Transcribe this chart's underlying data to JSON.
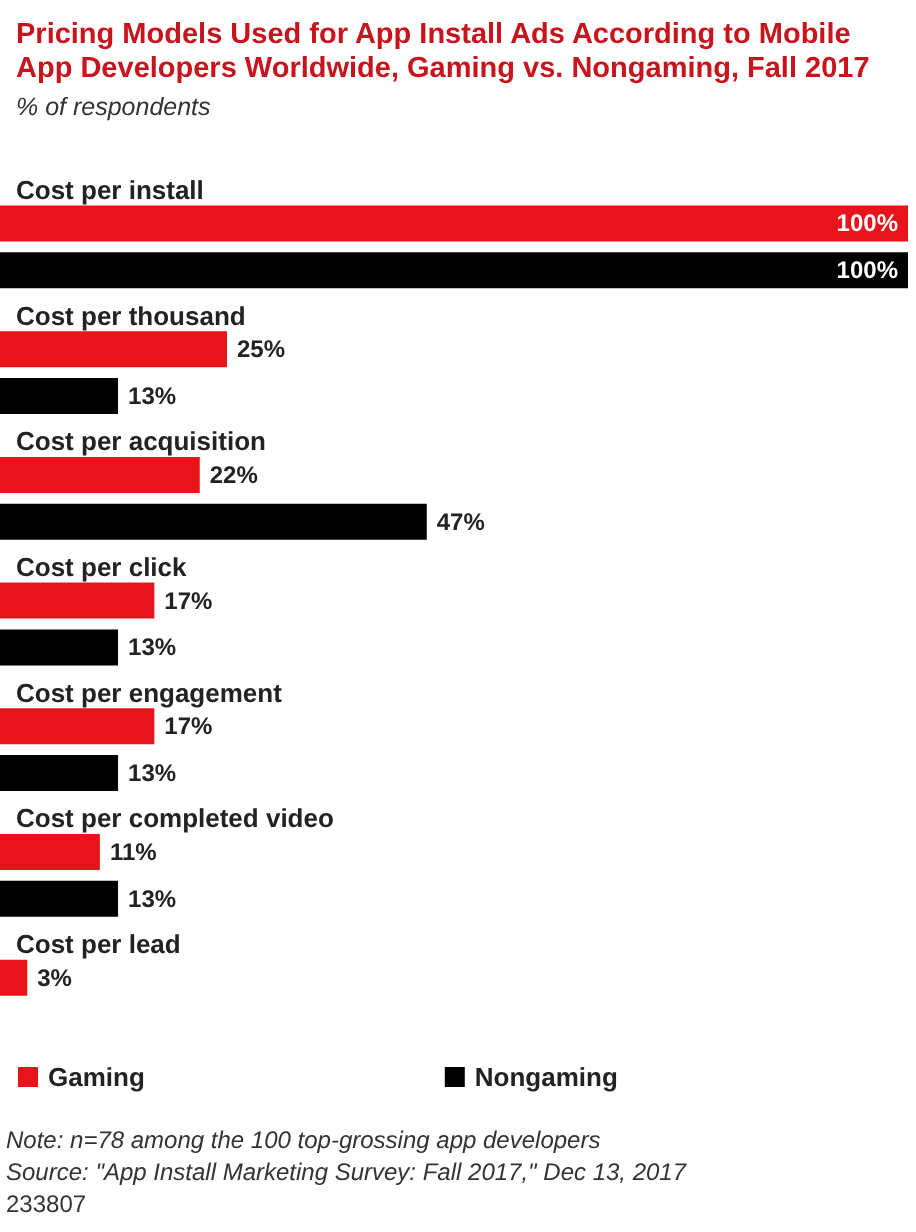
{
  "chart_data": {
    "type": "bar",
    "orientation": "horizontal",
    "title": "Pricing Models Used for App Install Ads According to Mobile App Developers Worldwide, Gaming vs. Nongaming, Fall 2017",
    "subtitle": "% of respondents",
    "categories": [
      "Cost per install",
      "Cost per thousand",
      "Cost per acquisition",
      "Cost per click",
      "Cost per engagement",
      "Cost per completed video",
      "Cost per lead"
    ],
    "series": [
      {
        "name": "Gaming",
        "color": "#e8141c",
        "values": [
          100,
          25,
          22,
          17,
          17,
          11,
          3
        ],
        "value_labels": [
          "100%",
          "25%",
          "22%",
          "17%",
          "17%",
          "11%",
          "3%"
        ]
      },
      {
        "name": "Nongaming",
        "color": "#000000",
        "values": [
          100,
          13,
          47,
          13,
          13,
          13,
          null
        ],
        "value_labels": [
          "100%",
          "13%",
          "47%",
          "13%",
          "13%",
          "13%",
          null
        ]
      }
    ],
    "xlim": [
      0,
      100
    ],
    "tick_labels": "y",
    "legend": "bottom",
    "annotations": [
      "Note: n=78 among the 100 top-grossing app developers",
      "Source: \"App Install Marketing Survey: Fall 2017,\" Dec 13, 2017",
      "233807"
    ]
  }
}
